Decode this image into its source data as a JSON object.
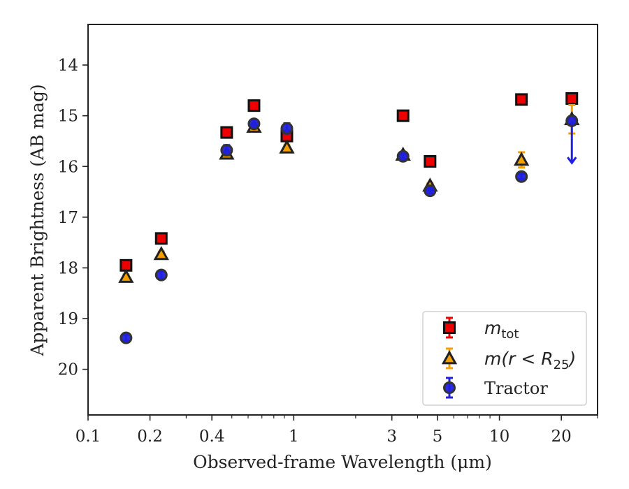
{
  "chart_data": {
    "type": "scatter",
    "xlabel": "Observed-frame Wavelength (μm)",
    "ylabel": "Apparent Brightness (AB mag)",
    "x_scale": "log",
    "y_inverted": true,
    "xlim": [
      0.1,
      30
    ],
    "ylim": [
      20.9,
      13.2
    ],
    "x_ticks": [
      {
        "value": 0.1,
        "label": "0.1"
      },
      {
        "value": 0.2,
        "label": "0.2"
      },
      {
        "value": 0.4,
        "label": "0.4"
      },
      {
        "value": 1,
        "label": "1"
      },
      {
        "value": 3,
        "label": "3"
      },
      {
        "value": 5,
        "label": "5"
      },
      {
        "value": 10,
        "label": "10"
      },
      {
        "value": 20,
        "label": "20"
      }
    ],
    "x_minor_ticks": [
      0.3,
      0.5,
      0.6,
      0.7,
      0.8,
      0.9,
      2,
      4,
      6,
      7,
      8,
      9,
      30
    ],
    "y_ticks": [
      {
        "value": 14,
        "label": "14"
      },
      {
        "value": 15,
        "label": "15"
      },
      {
        "value": 16,
        "label": "16"
      },
      {
        "value": 17,
        "label": "17"
      },
      {
        "value": 18,
        "label": "18"
      },
      {
        "value": 19,
        "label": "19"
      },
      {
        "value": 20,
        "label": "20"
      }
    ],
    "grid": false,
    "legend_position": "lower-right",
    "series": [
      {
        "name": "m_tot",
        "label_base": "m",
        "label_sub": "tot",
        "marker": "square",
        "color": "#ee0000",
        "edge": "#111111",
        "points": [
          {
            "x": 0.153,
            "y": 17.95,
            "err": 0.05
          },
          {
            "x": 0.227,
            "y": 17.42,
            "err": 0.05
          },
          {
            "x": 0.472,
            "y": 15.33,
            "err": 0.05
          },
          {
            "x": 0.641,
            "y": 14.8,
            "err": 0.05
          },
          {
            "x": 0.926,
            "y": 15.4,
            "err": 0.05
          },
          {
            "x": 3.4,
            "y": 15.0,
            "err": 0.05
          },
          {
            "x": 4.6,
            "y": 15.9,
            "err": 0.05
          },
          {
            "x": 12.8,
            "y": 14.68,
            "err": 0.05
          },
          {
            "x": 22.5,
            "y": 14.66,
            "err": 0.05
          }
        ]
      },
      {
        "name": "m(r < R25)",
        "label_pre": "m(r < R",
        "label_sub": "25",
        "label_post": ")",
        "marker": "triangle",
        "color": "#f5a000",
        "edge": "#222222",
        "points": [
          {
            "x": 0.153,
            "y": 18.18,
            "err": 0.05
          },
          {
            "x": 0.227,
            "y": 17.73,
            "err": 0.05
          },
          {
            "x": 0.472,
            "y": 15.75,
            "err": 0.05
          },
          {
            "x": 0.641,
            "y": 15.22,
            "err": 0.05
          },
          {
            "x": 0.926,
            "y": 15.63,
            "err": 0.05
          },
          {
            "x": 3.4,
            "y": 15.77,
            "err": 0.05
          },
          {
            "x": 4.6,
            "y": 16.38,
            "err": 0.05
          },
          {
            "x": 12.8,
            "y": 15.87,
            "err": 0.15
          },
          {
            "x": 22.5,
            "y": 15.07,
            "err": 0.28
          }
        ]
      },
      {
        "name": "Tractor",
        "marker": "circle",
        "color": "#2020e0",
        "edge": "#333333",
        "points": [
          {
            "x": 0.153,
            "y": 19.38,
            "err": 0.06
          },
          {
            "x": 0.227,
            "y": 18.14,
            "err": 0.07
          },
          {
            "x": 0.472,
            "y": 15.68,
            "err": 0.1
          },
          {
            "x": 0.641,
            "y": 15.16,
            "err": 0.08
          },
          {
            "x": 0.926,
            "y": 15.25,
            "err": 0.1
          },
          {
            "x": 3.4,
            "y": 15.8,
            "err": 0.05
          },
          {
            "x": 4.6,
            "y": 16.48,
            "err": 0.05
          },
          {
            "x": 12.8,
            "y": 16.2,
            "err": 0.05
          },
          {
            "x": 22.5,
            "y": 15.1,
            "upper_limit_to": 15.93
          }
        ]
      }
    ]
  }
}
